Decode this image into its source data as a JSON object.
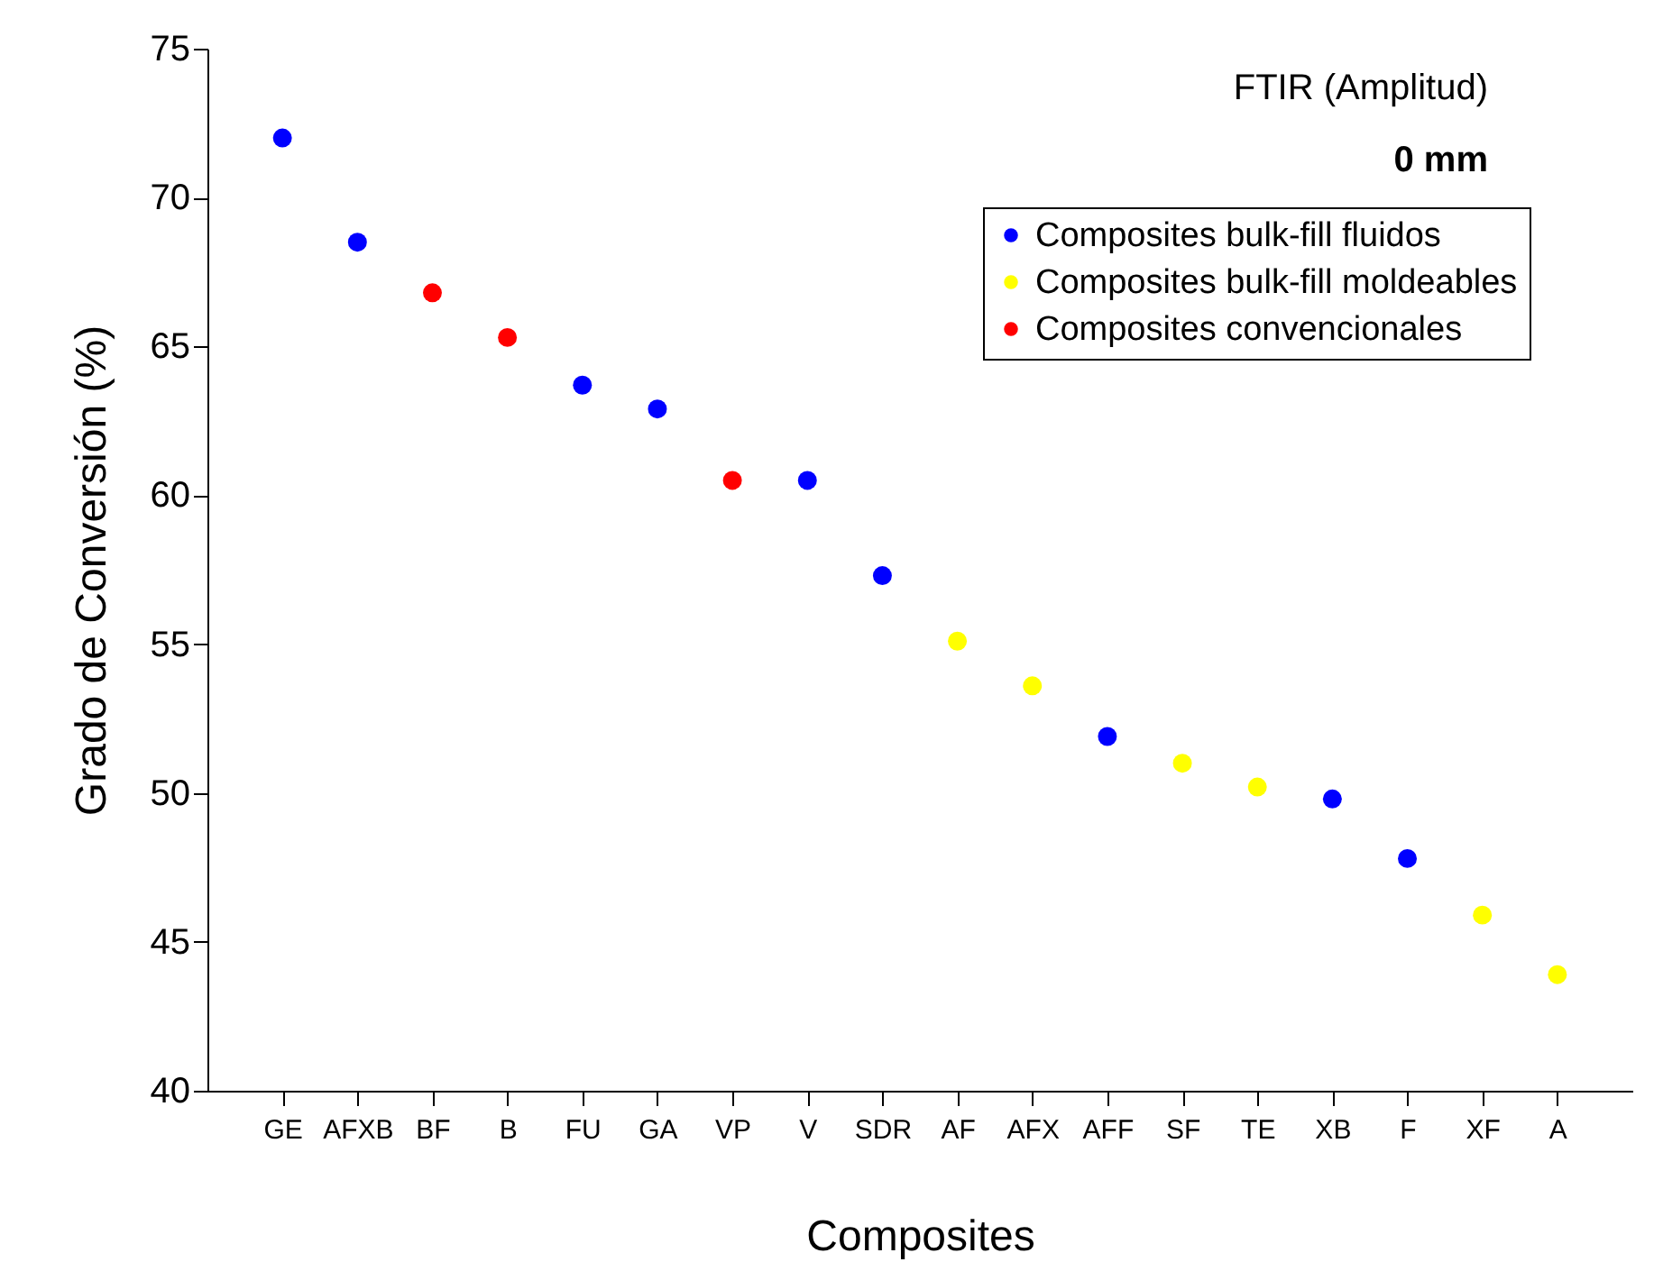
{
  "chart_data": {
    "type": "scatter",
    "title": "FTIR (Amplitud)",
    "subtitle": "0 mm",
    "xlabel": "Composites",
    "ylabel": "Grado de Conversión (%)",
    "categories": [
      "GE",
      "AFXB",
      "BF",
      "B",
      "FU",
      "GA",
      "VP",
      "V",
      "SDR",
      "AF",
      "AFX",
      "AFF",
      "SF",
      "TE",
      "XB",
      "F",
      "XF",
      "A"
    ],
    "series": [
      {
        "name": "Composites bulk-fill fluidos",
        "color": "#0000ff",
        "values": [
          72.0,
          68.5,
          null,
          null,
          63.7,
          62.9,
          null,
          60.5,
          57.3,
          null,
          null,
          51.9,
          null,
          null,
          49.8,
          47.8,
          null,
          null
        ]
      },
      {
        "name": "Composites bulk-fill moldeables",
        "color": "#ffff00",
        "values": [
          null,
          null,
          null,
          null,
          null,
          null,
          null,
          null,
          null,
          55.1,
          53.6,
          null,
          51.0,
          50.2,
          null,
          null,
          45.9,
          43.9
        ]
      },
      {
        "name": "Composites convencionales",
        "color": "#ff0000",
        "values": [
          null,
          null,
          66.8,
          65.3,
          null,
          null,
          60.5,
          null,
          null,
          null,
          null,
          null,
          null,
          null,
          null,
          null,
          null,
          null
        ]
      }
    ],
    "ylim": [
      40,
      75
    ],
    "yticks": [
      40,
      45,
      50,
      55,
      60,
      65,
      70,
      75
    ],
    "grid": false,
    "legend": "top right",
    "marker": "circle"
  }
}
